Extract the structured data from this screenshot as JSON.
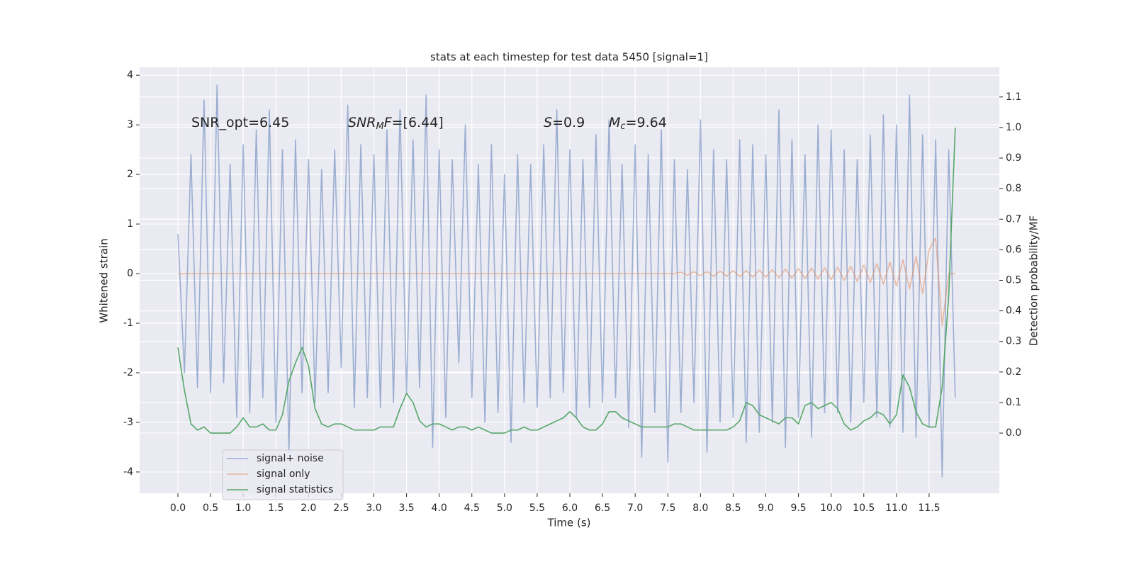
{
  "chart_data": {
    "type": "line",
    "title": "stats at each timestep for test data 5450 [signal=1]",
    "xlabel": "Time (s)",
    "ylabel": "Whitened strain",
    "y2label": "Detection probability/MF",
    "annotations": [
      [
        {
          "text": "SNR_opt=6.45"
        }
      ],
      [
        {
          "text": "SNR",
          "italic": true
        },
        {
          "text": "M",
          "italic": true,
          "sub": true
        },
        {
          "text": "F",
          "italic": true
        },
        {
          "text": "=[6.44]"
        }
      ],
      [
        {
          "text": "S",
          "italic": true
        },
        {
          "text": "=0.9"
        }
      ],
      [
        {
          "text": "M",
          "italic": true
        },
        {
          "text": "c",
          "italic": true,
          "sub": true
        },
        {
          "text": "=9.64"
        }
      ]
    ],
    "x": [
      0.0,
      0.1,
      0.2,
      0.3,
      0.4,
      0.5,
      0.6,
      0.7,
      0.8,
      0.9,
      1.0,
      1.1,
      1.2,
      1.3,
      1.4,
      1.5,
      1.6,
      1.7,
      1.8,
      1.9,
      2.0,
      2.1,
      2.2,
      2.3,
      2.4,
      2.5,
      2.6,
      2.7,
      2.8,
      2.9,
      3.0,
      3.1,
      3.2,
      3.3,
      3.4,
      3.5,
      3.6,
      3.7,
      3.8,
      3.9,
      4.0,
      4.1,
      4.2,
      4.3,
      4.4,
      4.5,
      4.6,
      4.7,
      4.8,
      4.9,
      5.0,
      5.1,
      5.2,
      5.3,
      5.4,
      5.5,
      5.6,
      5.7,
      5.8,
      5.9,
      6.0,
      6.1,
      6.2,
      6.3,
      6.4,
      6.5,
      6.6,
      6.7,
      6.8,
      6.9,
      7.0,
      7.1,
      7.2,
      7.3,
      7.4,
      7.5,
      7.6,
      7.7,
      7.8,
      7.9,
      8.0,
      8.1,
      8.2,
      8.3,
      8.4,
      8.5,
      8.6,
      8.7,
      8.8,
      8.9,
      9.0,
      9.1,
      9.2,
      9.3,
      9.4,
      9.5,
      9.6,
      9.7,
      9.8,
      9.9,
      10.0,
      10.1,
      10.2,
      10.3,
      10.4,
      10.5,
      10.6,
      10.7,
      10.8,
      10.9,
      11.0,
      11.1,
      11.2,
      11.3,
      11.4,
      11.5,
      11.6,
      11.7,
      11.8,
      11.9
    ],
    "series": [
      {
        "name": "signal+ noise",
        "color": "#4c72b0",
        "alpha": 0.5,
        "values": [
          0.8,
          -2.0,
          2.4,
          -2.3,
          3.5,
          -2.4,
          3.8,
          -2.2,
          2.2,
          -2.9,
          2.6,
          -2.8,
          2.9,
          -2.5,
          3.3,
          -3.0,
          2.5,
          -3.6,
          2.7,
          -2.4,
          2.3,
          -2.6,
          2.1,
          -2.4,
          2.5,
          -1.9,
          3.4,
          -2.7,
          2.6,
          -2.5,
          2.4,
          -2.7,
          2.9,
          -2.6,
          3.3,
          -2.4,
          2.7,
          -2.3,
          3.6,
          -3.5,
          2.5,
          -2.9,
          2.3,
          -1.8,
          3.0,
          -2.5,
          2.2,
          -3.0,
          2.6,
          -2.8,
          2.0,
          -3.4,
          2.4,
          -2.6,
          2.2,
          -2.7,
          2.6,
          -2.5,
          3.3,
          -2.4,
          2.5,
          -2.9,
          2.3,
          -2.7,
          2.8,
          -2.6,
          3.1,
          -2.5,
          2.2,
          -3.1,
          2.6,
          -3.7,
          2.4,
          -2.8,
          2.9,
          -3.8,
          2.3,
          -2.8,
          2.1,
          -2.6,
          3.1,
          -3.6,
          2.5,
          -3.0,
          2.3,
          -2.9,
          2.7,
          -3.4,
          2.6,
          -3.2,
          2.4,
          -3.0,
          3.3,
          -3.5,
          2.7,
          -2.9,
          2.4,
          -3.3,
          3.0,
          -2.8,
          2.9,
          -2.8,
          2.5,
          -3.0,
          2.3,
          -2.6,
          2.8,
          -2.9,
          3.2,
          -3.1,
          3.0,
          -3.2,
          3.6,
          -3.3,
          2.8,
          -3.1,
          2.7,
          -4.1,
          2.5,
          -2.5
        ]
      },
      {
        "name": "signal only",
        "color": "#dd8452",
        "alpha": 0.5,
        "values": [
          0,
          0,
          0,
          0,
          0,
          0,
          0,
          0,
          0,
          0,
          0,
          0,
          0,
          0,
          0,
          0,
          0,
          0,
          0,
          0,
          0,
          0,
          0,
          0,
          0,
          0,
          0,
          0,
          0,
          0,
          0,
          0,
          0,
          0,
          0,
          0,
          0,
          0,
          0,
          0,
          0,
          0,
          0,
          0,
          0,
          0,
          0,
          0,
          0,
          0,
          0,
          0,
          0,
          0,
          0,
          0,
          0,
          0,
          0,
          0,
          0,
          0,
          0,
          0,
          0,
          0,
          0,
          0,
          0,
          0,
          0,
          0,
          0,
          0,
          0,
          0,
          0,
          0.03,
          -0.03,
          0.04,
          -0.04,
          0.04,
          -0.05,
          0.05,
          -0.05,
          0.06,
          -0.06,
          0.06,
          -0.07,
          0.07,
          -0.07,
          0.08,
          -0.08,
          0.09,
          -0.09,
          0.1,
          -0.1,
          0.11,
          -0.11,
          0.12,
          -0.12,
          0.13,
          -0.14,
          0.15,
          -0.16,
          0.17,
          -0.18,
          0.2,
          -0.21,
          0.23,
          -0.25,
          0.28,
          -0.31,
          0.35,
          -0.4,
          0.48,
          0.72,
          -1.05,
          0,
          0
        ]
      },
      {
        "name": "signal statistics",
        "color": "#55a868",
        "alpha": 1,
        "axis": "y2",
        "values": [
          0.28,
          0.14,
          0.03,
          0.01,
          0.02,
          0.0,
          0.0,
          0.0,
          0.0,
          0.02,
          0.05,
          0.02,
          0.02,
          0.03,
          0.01,
          0.01,
          0.06,
          0.17,
          0.23,
          0.28,
          0.22,
          0.08,
          0.03,
          0.02,
          0.03,
          0.03,
          0.02,
          0.01,
          0.01,
          0.01,
          0.01,
          0.02,
          0.02,
          0.02,
          0.08,
          0.13,
          0.1,
          0.04,
          0.02,
          0.03,
          0.03,
          0.02,
          0.01,
          0.02,
          0.02,
          0.01,
          0.02,
          0.01,
          0.0,
          0.0,
          0.0,
          0.01,
          0.01,
          0.02,
          0.01,
          0.01,
          0.02,
          0.03,
          0.04,
          0.05,
          0.07,
          0.05,
          0.02,
          0.01,
          0.01,
          0.03,
          0.07,
          0.07,
          0.05,
          0.04,
          0.03,
          0.02,
          0.02,
          0.02,
          0.02,
          0.02,
          0.03,
          0.03,
          0.02,
          0.01,
          0.01,
          0.01,
          0.01,
          0.01,
          0.01,
          0.02,
          0.04,
          0.1,
          0.09,
          0.06,
          0.05,
          0.04,
          0.03,
          0.05,
          0.05,
          0.03,
          0.09,
          0.1,
          0.08,
          0.09,
          0.1,
          0.08,
          0.03,
          0.01,
          0.02,
          0.04,
          0.05,
          0.07,
          0.06,
          0.03,
          0.06,
          0.19,
          0.15,
          0.07,
          0.03,
          0.02,
          0.02,
          0.15,
          0.45,
          1.0
        ]
      }
    ],
    "xlim": [
      -0.586,
      12.575
    ],
    "ylim": [
      -4.43,
      4.16
    ],
    "y2lim": [
      -0.197,
      1.197
    ],
    "xticks": [
      {
        "value": 0,
        "label": "0.0"
      },
      {
        "value": 0.5,
        "label": "0.5"
      },
      {
        "value": 1,
        "label": "1.0"
      },
      {
        "value": 1.5,
        "label": "1.5"
      },
      {
        "value": 2,
        "label": "2.0"
      },
      {
        "value": 2.5,
        "label": "2.5"
      },
      {
        "value": 3,
        "label": "3.0"
      },
      {
        "value": 3.5,
        "label": "3.5"
      },
      {
        "value": 4,
        "label": "4.0"
      },
      {
        "value": 4.5,
        "label": "4.5"
      },
      {
        "value": 5,
        "label": "5.0"
      },
      {
        "value": 5.5,
        "label": "5.5"
      },
      {
        "value": 6,
        "label": "6.0"
      },
      {
        "value": 6.5,
        "label": "6.5"
      },
      {
        "value": 7,
        "label": "7.0"
      },
      {
        "value": 7.5,
        "label": "7.5"
      },
      {
        "value": 8,
        "label": "8.0"
      },
      {
        "value": 8.5,
        "label": "8.5"
      },
      {
        "value": 9,
        "label": "9.0"
      },
      {
        "value": 9.5,
        "label": "9.5"
      },
      {
        "value": 10,
        "label": "10.0"
      },
      {
        "value": 10.5,
        "label": "10.5"
      },
      {
        "value": 11,
        "label": "11.0"
      },
      {
        "value": 11.5,
        "label": "11.5"
      }
    ],
    "yticks": [
      -4,
      -3,
      -2,
      -1,
      0,
      1,
      2,
      3,
      4
    ],
    "y2ticks": [
      {
        "value": 0,
        "label": "0.0"
      },
      {
        "value": 0.1,
        "label": "0.1"
      },
      {
        "value": 0.2,
        "label": "0.2"
      },
      {
        "value": 0.3,
        "label": "0.3"
      },
      {
        "value": 0.4,
        "label": "0.4"
      },
      {
        "value": 0.5,
        "label": "0.5"
      },
      {
        "value": 0.6,
        "label": "0.6"
      },
      {
        "value": 0.7,
        "label": "0.7"
      },
      {
        "value": 0.8,
        "label": "0.8"
      },
      {
        "value": 0.9,
        "label": "0.9"
      },
      {
        "value": 1.0,
        "label": "1.0"
      },
      {
        "value": 1.1,
        "label": "1.1"
      }
    ],
    "grid": true,
    "legend": "lower left"
  }
}
